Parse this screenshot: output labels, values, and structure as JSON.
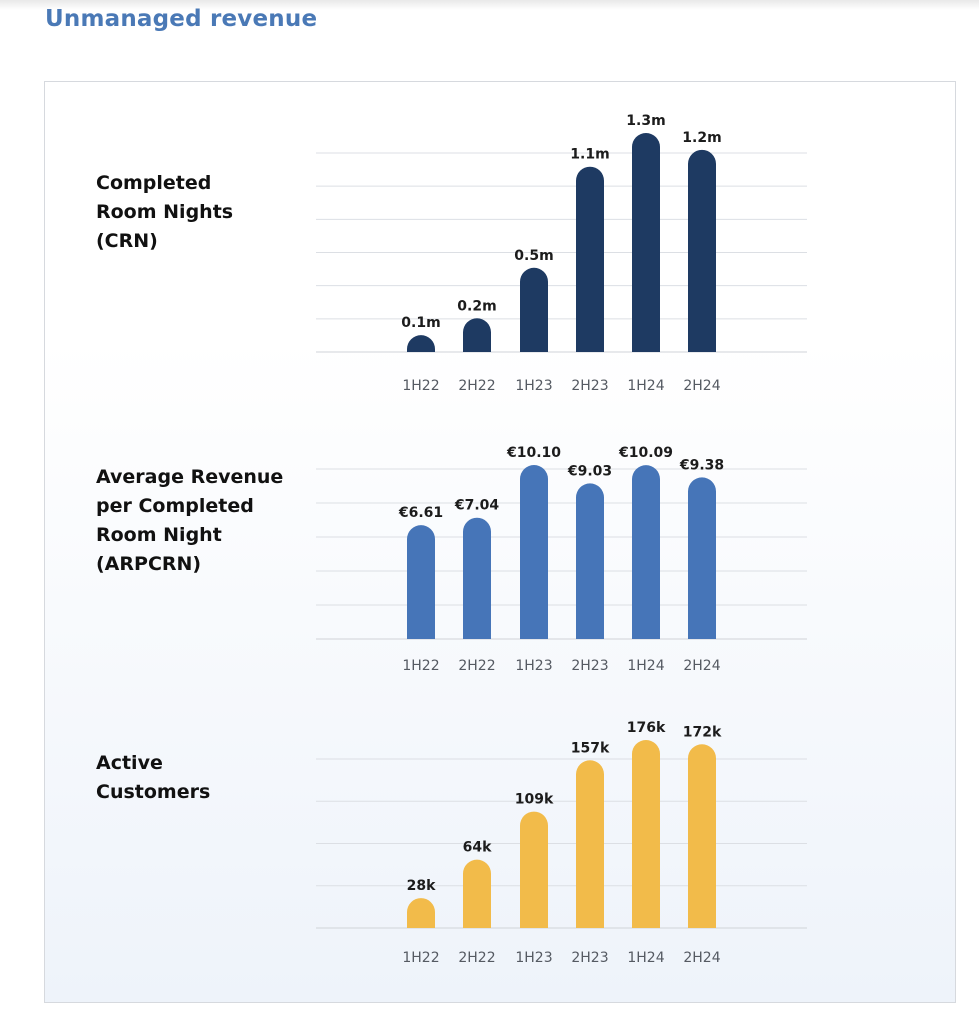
{
  "page": {
    "title": "Unmanaged revenue"
  },
  "colors": {
    "title": "#4a79b6",
    "crn_bar": "#1e3a62",
    "arpcrn_bar": "#4675b8",
    "customers_bar": "#f2bb4a"
  },
  "chart_data": [
    {
      "type": "bar",
      "label_lines": [
        "Completed",
        "Room Nights",
        "(CRN)"
      ],
      "categories": [
        "1H22",
        "2H22",
        "1H23",
        "2H23",
        "1H24",
        "2H24"
      ],
      "values": [
        0.1,
        0.2,
        0.5,
        1.1,
        1.3,
        1.2
      ],
      "value_labels": [
        "0.1m",
        "0.2m",
        "0.5m",
        "1.1m",
        "1.3m",
        "1.2m"
      ],
      "unit": "m",
      "grid": true,
      "color": "#1e3a62"
    },
    {
      "type": "bar",
      "label_lines": [
        "Average Revenue",
        "per Completed",
        "Room Night",
        "(ARPCRN)"
      ],
      "categories": [
        "1H22",
        "2H22",
        "1H23",
        "2H23",
        "1H24",
        "2H24"
      ],
      "values": [
        6.61,
        7.04,
        10.1,
        9.03,
        10.09,
        9.38
      ],
      "value_labels": [
        "€6.61",
        "€7.04",
        "€10.10",
        "€9.03",
        "€10.09",
        "€9.38"
      ],
      "unit": "€",
      "grid": true,
      "color": "#4675b8"
    },
    {
      "type": "bar",
      "label_lines": [
        "Active",
        "Customers"
      ],
      "categories": [
        "1H22",
        "2H22",
        "1H23",
        "2H23",
        "1H24",
        "2H24"
      ],
      "values": [
        28,
        64,
        109,
        157,
        176,
        172
      ],
      "value_labels": [
        "28k",
        "64k",
        "109k",
        "157k",
        "176k",
        "172k"
      ],
      "unit": "k",
      "grid": true,
      "color": "#f2bb4a"
    }
  ]
}
